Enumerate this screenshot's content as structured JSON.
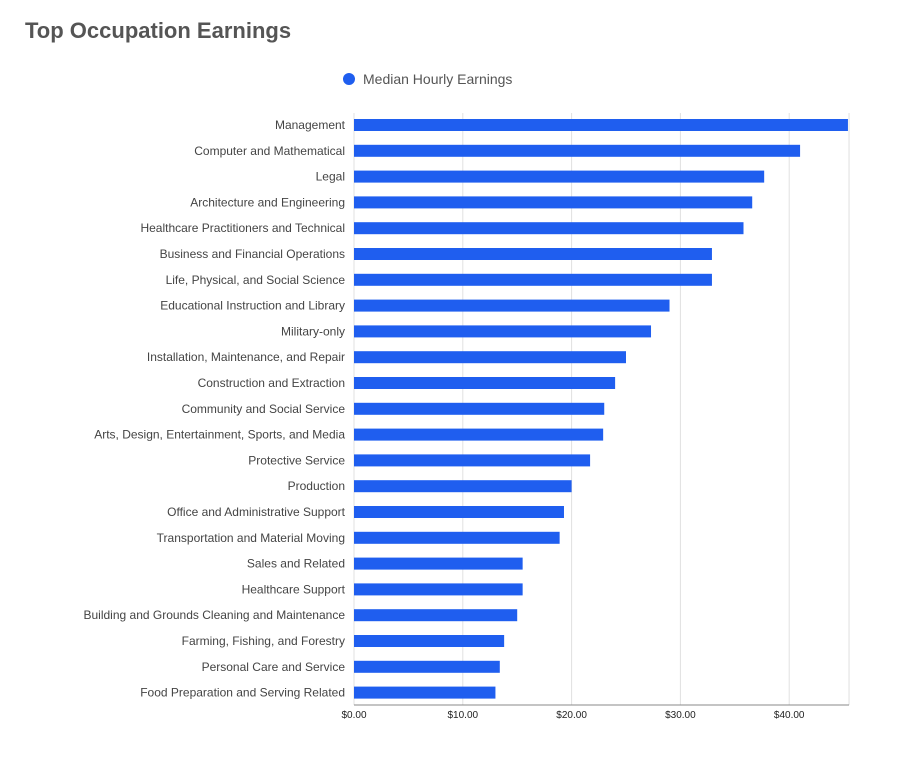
{
  "chart_data": {
    "type": "bar",
    "orientation": "horizontal",
    "title": "Top Occupation Earnings",
    "xlabel": "",
    "ylabel": "",
    "xlim": [
      0,
      45.5
    ],
    "x_ticks": [
      "$0.00",
      "$10.00",
      "$20.00",
      "$30.00",
      "$40.00"
    ],
    "x_tick_values": [
      0,
      10,
      20,
      30,
      40
    ],
    "grid": true,
    "legend_position": "top",
    "color": "#1f5eef",
    "categories": [
      "Management",
      "Computer and Mathematical",
      "Legal",
      "Architecture and Engineering",
      "Healthcare Practitioners and Technical",
      "Business and Financial Operations",
      "Life, Physical, and Social Science",
      "Educational Instruction and Library",
      "Military-only",
      "Installation, Maintenance, and Repair",
      "Construction and Extraction",
      "Community and Social Service",
      "Arts, Design, Entertainment, Sports, and Media",
      "Protective Service",
      "Production",
      "Office and Administrative Support",
      "Transportation and Material Moving",
      "Sales and Related",
      "Healthcare Support",
      "Building and Grounds Cleaning and Maintenance",
      "Farming, Fishing, and Forestry",
      "Personal Care and Service",
      "Food Preparation and Serving Related"
    ],
    "series": [
      {
        "name": "Median Hourly Earnings",
        "values": [
          45.4,
          41.0,
          37.7,
          36.6,
          35.8,
          32.9,
          32.9,
          29.0,
          27.3,
          25.0,
          24.0,
          23.0,
          22.9,
          21.7,
          20.0,
          19.3,
          18.9,
          15.5,
          15.5,
          15.0,
          13.8,
          13.4,
          13.0
        ]
      }
    ]
  }
}
